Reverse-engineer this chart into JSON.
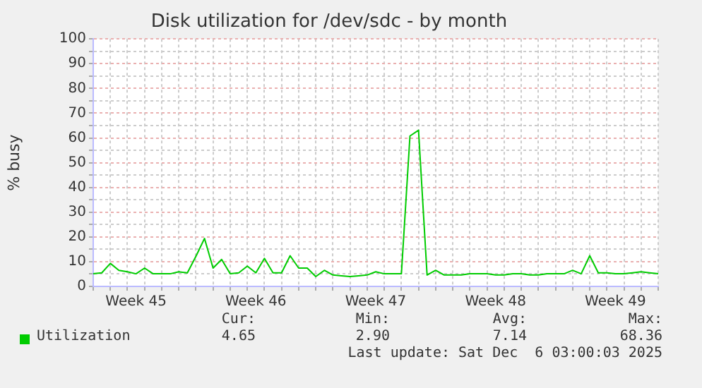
{
  "chart_data": {
    "type": "line",
    "title": "Disk utilization for /dev/sdc - by month",
    "ylabel": "% busy",
    "categories": [
      null,
      null,
      null,
      null,
      null,
      "Week 45",
      null,
      null,
      null,
      null,
      null,
      null,
      null,
      null,
      null,
      null,
      null,
      null,
      null,
      "Week 46",
      null,
      null,
      null,
      null,
      null,
      null,
      null,
      null,
      null,
      null,
      null,
      null,
      null,
      "Week 47",
      null,
      null,
      null,
      null,
      null,
      null,
      null,
      null,
      null,
      null,
      null,
      null,
      null,
      "Week 48",
      null,
      null,
      null,
      null,
      null,
      null,
      null,
      null,
      null,
      null,
      null,
      null,
      null,
      "Week 49",
      null,
      null,
      null,
      null,
      null
    ],
    "series": [
      {
        "name": "Utilization",
        "color": "#00cc00",
        "values": [
          5.1,
          5.5,
          9.3,
          6.5,
          5.9,
          5.1,
          7.4,
          5.1,
          5.1,
          5.1,
          5.9,
          5.5,
          12.2,
          19.4,
          7.4,
          10.9,
          5.1,
          5.5,
          8.2,
          5.5,
          11.3,
          5.5,
          5.5,
          12.4,
          7.4,
          7.4,
          4.0,
          6.5,
          4.6,
          4.3,
          4.0,
          4.3,
          4.6,
          5.9,
          5.1,
          5.1,
          5.1,
          60.8,
          63.1,
          4.6,
          6.5,
          4.6,
          4.6,
          4.6,
          5.1,
          5.1,
          5.1,
          4.6,
          4.6,
          5.1,
          5.1,
          4.6,
          4.6,
          5.1,
          5.1,
          5.1,
          6.5,
          5.1,
          12.4,
          5.5,
          5.5,
          5.1,
          5.1,
          5.5,
          5.9,
          5.5,
          5.1
        ]
      }
    ],
    "ylim": [
      0,
      100
    ],
    "yticks": [
      0,
      {
        "value": 5,
        "label": null
      },
      10,
      {
        "value": 15,
        "label": null
      },
      20,
      {
        "value": 25,
        "label": null
      },
      30,
      {
        "value": 35,
        "label": null
      },
      40,
      {
        "value": 45,
        "label": null
      },
      50,
      {
        "value": 55,
        "label": null
      },
      60,
      {
        "value": 65,
        "label": null
      },
      70,
      {
        "value": 75,
        "label": null
      },
      80,
      {
        "value": 85,
        "label": null
      },
      90,
      {
        "value": 95,
        "label": null
      },
      100
    ],
    "grid": true,
    "legend": "bottom",
    "marker": "none",
    "line_style": "solid",
    "annotations": [
      "Cur:",
      "Min:",
      "Avg:",
      "Max:",
      "4.65",
      "2.90",
      "7.14",
      "68.36",
      "Last update: Sat Dec  6 03:00:03 2025"
    ]
  }
}
